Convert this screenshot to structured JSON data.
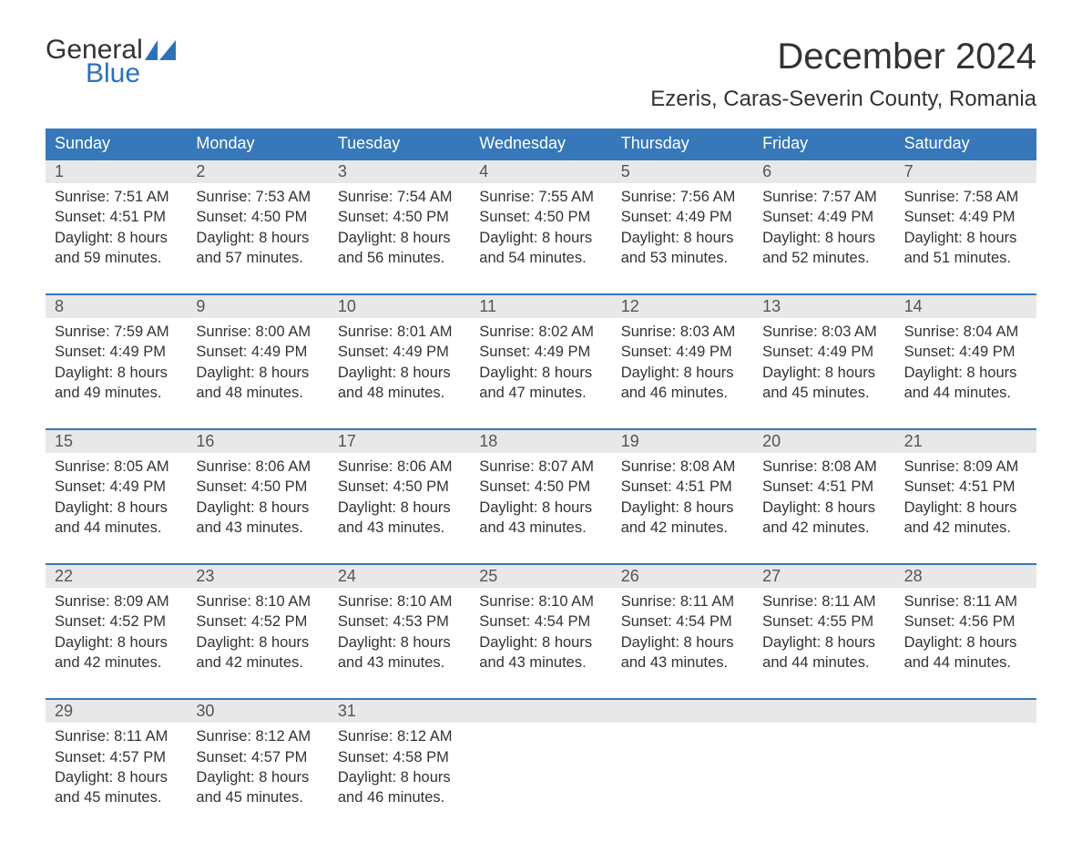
{
  "colors": {
    "header_bg": "#3678b9",
    "header_text": "#ffffff",
    "band_bg": "#e8e8e8",
    "rule": "#3678b9",
    "body_text": "#333333",
    "logo_accent": "#2d72b8"
  },
  "logo": {
    "line1": "General",
    "line2": "Blue"
  },
  "title": "December 2024",
  "location": "Ezeris, Caras-Severin County, Romania",
  "dows": [
    "Sunday",
    "Monday",
    "Tuesday",
    "Wednesday",
    "Thursday",
    "Friday",
    "Saturday"
  ],
  "weeks": [
    [
      {
        "n": "1",
        "sr": "Sunrise: 7:51 AM",
        "ss": "Sunset: 4:51 PM",
        "d1": "Daylight: 8 hours",
        "d2": "and 59 minutes."
      },
      {
        "n": "2",
        "sr": "Sunrise: 7:53 AM",
        "ss": "Sunset: 4:50 PM",
        "d1": "Daylight: 8 hours",
        "d2": "and 57 minutes."
      },
      {
        "n": "3",
        "sr": "Sunrise: 7:54 AM",
        "ss": "Sunset: 4:50 PM",
        "d1": "Daylight: 8 hours",
        "d2": "and 56 minutes."
      },
      {
        "n": "4",
        "sr": "Sunrise: 7:55 AM",
        "ss": "Sunset: 4:50 PM",
        "d1": "Daylight: 8 hours",
        "d2": "and 54 minutes."
      },
      {
        "n": "5",
        "sr": "Sunrise: 7:56 AM",
        "ss": "Sunset: 4:49 PM",
        "d1": "Daylight: 8 hours",
        "d2": "and 53 minutes."
      },
      {
        "n": "6",
        "sr": "Sunrise: 7:57 AM",
        "ss": "Sunset: 4:49 PM",
        "d1": "Daylight: 8 hours",
        "d2": "and 52 minutes."
      },
      {
        "n": "7",
        "sr": "Sunrise: 7:58 AM",
        "ss": "Sunset: 4:49 PM",
        "d1": "Daylight: 8 hours",
        "d2": "and 51 minutes."
      }
    ],
    [
      {
        "n": "8",
        "sr": "Sunrise: 7:59 AM",
        "ss": "Sunset: 4:49 PM",
        "d1": "Daylight: 8 hours",
        "d2": "and 49 minutes."
      },
      {
        "n": "9",
        "sr": "Sunrise: 8:00 AM",
        "ss": "Sunset: 4:49 PM",
        "d1": "Daylight: 8 hours",
        "d2": "and 48 minutes."
      },
      {
        "n": "10",
        "sr": "Sunrise: 8:01 AM",
        "ss": "Sunset: 4:49 PM",
        "d1": "Daylight: 8 hours",
        "d2": "and 48 minutes."
      },
      {
        "n": "11",
        "sr": "Sunrise: 8:02 AM",
        "ss": "Sunset: 4:49 PM",
        "d1": "Daylight: 8 hours",
        "d2": "and 47 minutes."
      },
      {
        "n": "12",
        "sr": "Sunrise: 8:03 AM",
        "ss": "Sunset: 4:49 PM",
        "d1": "Daylight: 8 hours",
        "d2": "and 46 minutes."
      },
      {
        "n": "13",
        "sr": "Sunrise: 8:03 AM",
        "ss": "Sunset: 4:49 PM",
        "d1": "Daylight: 8 hours",
        "d2": "and 45 minutes."
      },
      {
        "n": "14",
        "sr": "Sunrise: 8:04 AM",
        "ss": "Sunset: 4:49 PM",
        "d1": "Daylight: 8 hours",
        "d2": "and 44 minutes."
      }
    ],
    [
      {
        "n": "15",
        "sr": "Sunrise: 8:05 AM",
        "ss": "Sunset: 4:49 PM",
        "d1": "Daylight: 8 hours",
        "d2": "and 44 minutes."
      },
      {
        "n": "16",
        "sr": "Sunrise: 8:06 AM",
        "ss": "Sunset: 4:50 PM",
        "d1": "Daylight: 8 hours",
        "d2": "and 43 minutes."
      },
      {
        "n": "17",
        "sr": "Sunrise: 8:06 AM",
        "ss": "Sunset: 4:50 PM",
        "d1": "Daylight: 8 hours",
        "d2": "and 43 minutes."
      },
      {
        "n": "18",
        "sr": "Sunrise: 8:07 AM",
        "ss": "Sunset: 4:50 PM",
        "d1": "Daylight: 8 hours",
        "d2": "and 43 minutes."
      },
      {
        "n": "19",
        "sr": "Sunrise: 8:08 AM",
        "ss": "Sunset: 4:51 PM",
        "d1": "Daylight: 8 hours",
        "d2": "and 42 minutes."
      },
      {
        "n": "20",
        "sr": "Sunrise: 8:08 AM",
        "ss": "Sunset: 4:51 PM",
        "d1": "Daylight: 8 hours",
        "d2": "and 42 minutes."
      },
      {
        "n": "21",
        "sr": "Sunrise: 8:09 AM",
        "ss": "Sunset: 4:51 PM",
        "d1": "Daylight: 8 hours",
        "d2": "and 42 minutes."
      }
    ],
    [
      {
        "n": "22",
        "sr": "Sunrise: 8:09 AM",
        "ss": "Sunset: 4:52 PM",
        "d1": "Daylight: 8 hours",
        "d2": "and 42 minutes."
      },
      {
        "n": "23",
        "sr": "Sunrise: 8:10 AM",
        "ss": "Sunset: 4:52 PM",
        "d1": "Daylight: 8 hours",
        "d2": "and 42 minutes."
      },
      {
        "n": "24",
        "sr": "Sunrise: 8:10 AM",
        "ss": "Sunset: 4:53 PM",
        "d1": "Daylight: 8 hours",
        "d2": "and 43 minutes."
      },
      {
        "n": "25",
        "sr": "Sunrise: 8:10 AM",
        "ss": "Sunset: 4:54 PM",
        "d1": "Daylight: 8 hours",
        "d2": "and 43 minutes."
      },
      {
        "n": "26",
        "sr": "Sunrise: 8:11 AM",
        "ss": "Sunset: 4:54 PM",
        "d1": "Daylight: 8 hours",
        "d2": "and 43 minutes."
      },
      {
        "n": "27",
        "sr": "Sunrise: 8:11 AM",
        "ss": "Sunset: 4:55 PM",
        "d1": "Daylight: 8 hours",
        "d2": "and 44 minutes."
      },
      {
        "n": "28",
        "sr": "Sunrise: 8:11 AM",
        "ss": "Sunset: 4:56 PM",
        "d1": "Daylight: 8 hours",
        "d2": "and 44 minutes."
      }
    ],
    [
      {
        "n": "29",
        "sr": "Sunrise: 8:11 AM",
        "ss": "Sunset: 4:57 PM",
        "d1": "Daylight: 8 hours",
        "d2": "and 45 minutes."
      },
      {
        "n": "30",
        "sr": "Sunrise: 8:12 AM",
        "ss": "Sunset: 4:57 PM",
        "d1": "Daylight: 8 hours",
        "d2": "and 45 minutes."
      },
      {
        "n": "31",
        "sr": "Sunrise: 8:12 AM",
        "ss": "Sunset: 4:58 PM",
        "d1": "Daylight: 8 hours",
        "d2": "and 46 minutes."
      },
      null,
      null,
      null,
      null
    ]
  ]
}
